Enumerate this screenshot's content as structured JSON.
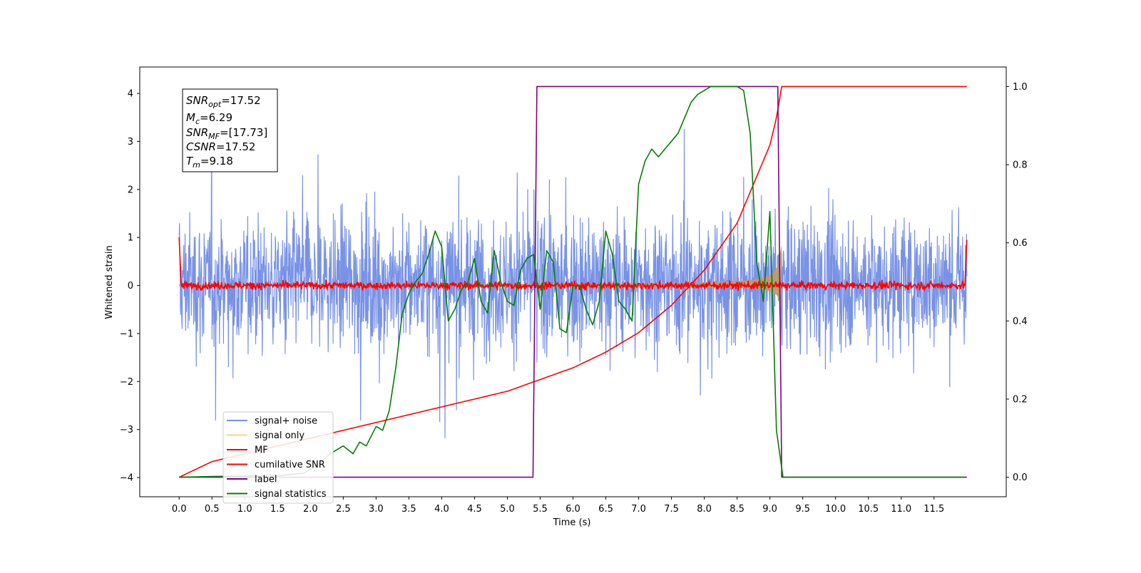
{
  "chart_data": {
    "type": "line",
    "xlabel": "Time (s)",
    "ylabel": "Whitened strain",
    "xlim": [
      -0.6,
      12.6
    ],
    "ylim": [
      -4.4,
      4.55
    ],
    "y2lim": [
      -0.05,
      1.05
    ],
    "x_ticks": [
      0.0,
      0.5,
      1.0,
      1.5,
      2.0,
      2.5,
      3.0,
      3.5,
      4.0,
      4.5,
      5.0,
      5.5,
      6.0,
      6.5,
      7.0,
      7.5,
      8.0,
      8.5,
      9.0,
      9.5,
      10.0,
      10.5,
      11.0,
      11.5
    ],
    "x_tick_labels": [
      "0.0",
      "0.5",
      "1.0",
      "1.5",
      "2.0",
      "2.5",
      "3.0",
      "3.5",
      "4.0",
      "4.5",
      "5.0",
      "5.5",
      "6.0",
      "6.5",
      "7.0",
      "7.5",
      "8.0",
      "8.5",
      "9.0",
      "9.5",
      "10.0",
      "10.5",
      "11.0",
      "11.5"
    ],
    "y_ticks": [
      -4,
      -3,
      -2,
      -1,
      0,
      1,
      2,
      3,
      4
    ],
    "y_tick_labels": [
      "−4",
      "−3",
      "−2",
      "−1",
      "0",
      "1",
      "2",
      "3",
      "4"
    ],
    "y2_ticks": [
      0.0,
      0.2,
      0.4,
      0.6,
      0.8,
      1.0
    ],
    "y2_tick_labels": [
      "0.0",
      "0.2",
      "0.4",
      "0.6",
      "0.8",
      "1.0"
    ],
    "grid": false,
    "legend_position": "lower-left",
    "info_box": {
      "snr_opt": {
        "main": "SNR",
        "sub": "opt",
        "value": "=17.52"
      },
      "mc": {
        "main": "M",
        "sub": "c",
        "value": "=6.29"
      },
      "snr_mf": {
        "main": "SNR",
        "sub": "MF",
        "value": "=[17.73]"
      },
      "csnr": {
        "main": "CSNR",
        "sub": "",
        "value": "=17.52"
      },
      "tm": {
        "main": "T",
        "sub": "m",
        "value": "=9.18"
      }
    },
    "series": [
      {
        "name": "signal+ noise",
        "color": "#7892e6",
        "axis": "left",
        "x_range": [
          0.0,
          12.0
        ],
        "amplitude_std": 0.95
      },
      {
        "name": "signal only",
        "color": "#ffd27f",
        "axis": "left",
        "x_range": [
          0.0,
          12.0
        ],
        "envelope": {
          "t_merge": 9.18,
          "max_amplitude": 1.4
        }
      },
      {
        "name": "MF",
        "color": "#ff0000",
        "axis": "left",
        "x_range": [
          0.0,
          12.0
        ],
        "amplitude_std": 0.04,
        "start_value": 1.0,
        "end_value": 0.95
      },
      {
        "name": "cumilative SNR",
        "color": "#ff0000",
        "axis": "right",
        "x": [
          0.0,
          0.5,
          1.0,
          1.5,
          2.0,
          2.5,
          3.0,
          3.5,
          4.0,
          4.5,
          5.0,
          5.5,
          6.0,
          6.5,
          7.0,
          7.5,
          8.0,
          8.5,
          9.0,
          9.1,
          9.18,
          12.0
        ],
        "y": [
          0.0,
          0.04,
          0.06,
          0.08,
          0.1,
          0.12,
          0.14,
          0.16,
          0.18,
          0.2,
          0.22,
          0.25,
          0.28,
          0.32,
          0.37,
          0.44,
          0.53,
          0.65,
          0.85,
          0.92,
          1.0,
          1.0
        ]
      },
      {
        "name": "label",
        "color": "#800080",
        "axis": "right",
        "x": [
          0.0,
          5.39,
          5.45,
          9.12,
          9.18,
          12.0
        ],
        "y": [
          0.0,
          0.0,
          1.0,
          1.0,
          0.0,
          0.0
        ]
      },
      {
        "name": "signal statistics",
        "color": "#008000",
        "axis": "right",
        "x": [
          0.0,
          0.5,
          1.0,
          1.5,
          1.9,
          2.1,
          2.3,
          2.5,
          2.65,
          2.75,
          2.85,
          3.0,
          3.1,
          3.2,
          3.3,
          3.4,
          3.5,
          3.6,
          3.7,
          3.8,
          3.9,
          4.0,
          4.1,
          4.2,
          4.3,
          4.4,
          4.5,
          4.6,
          4.7,
          4.8,
          4.9,
          5.0,
          5.1,
          5.2,
          5.3,
          5.4,
          5.5,
          5.6,
          5.7,
          5.8,
          5.9,
          6.0,
          6.1,
          6.2,
          6.3,
          6.4,
          6.5,
          6.6,
          6.7,
          6.8,
          6.9,
          7.0,
          7.1,
          7.2,
          7.3,
          7.4,
          7.5,
          7.6,
          7.7,
          7.8,
          7.9,
          8.0,
          8.1,
          8.2,
          8.3,
          8.4,
          8.5,
          8.6,
          8.7,
          8.8,
          8.9,
          9.0,
          9.1,
          9.2,
          9.3,
          9.5,
          10.0,
          11.0,
          11.95
        ],
        "y": [
          0.0,
          0.002,
          0.003,
          0.004,
          0.01,
          0.03,
          0.06,
          0.08,
          0.06,
          0.09,
          0.08,
          0.13,
          0.12,
          0.17,
          0.28,
          0.42,
          0.47,
          0.5,
          0.52,
          0.57,
          0.63,
          0.59,
          0.4,
          0.43,
          0.48,
          0.5,
          0.56,
          0.45,
          0.42,
          0.58,
          0.5,
          0.45,
          0.44,
          0.53,
          0.56,
          0.57,
          0.43,
          0.58,
          0.55,
          0.38,
          0.37,
          0.49,
          0.49,
          0.43,
          0.39,
          0.45,
          0.63,
          0.57,
          0.45,
          0.43,
          0.4,
          0.75,
          0.81,
          0.84,
          0.82,
          0.84,
          0.86,
          0.88,
          0.92,
          0.96,
          0.98,
          0.99,
          1.0,
          1.0,
          1.0,
          1.0,
          1.0,
          0.99,
          0.88,
          0.55,
          0.45,
          0.68,
          0.12,
          0.0,
          0.0,
          0.0,
          0.0,
          0.0,
          0.0
        ]
      }
    ]
  }
}
